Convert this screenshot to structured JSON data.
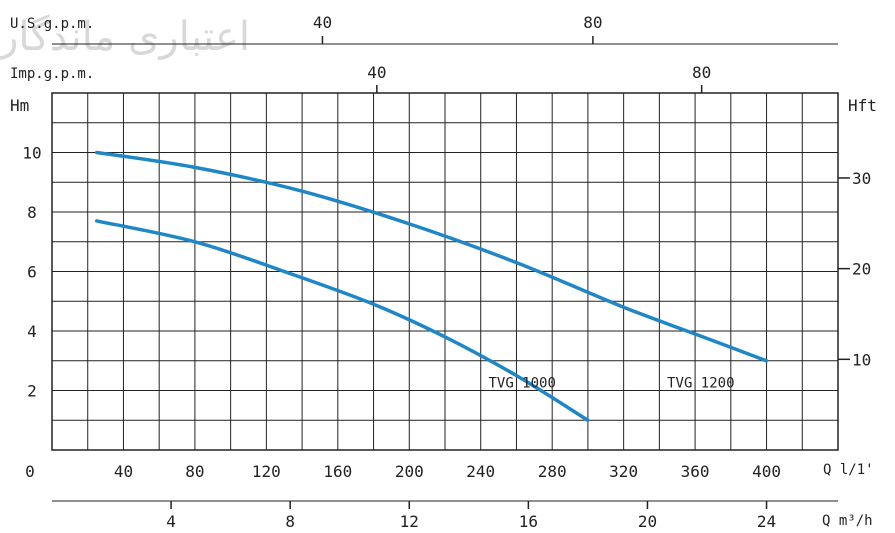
{
  "watermark": "اعتباری ماندگار",
  "chart_data": {
    "type": "line",
    "title": "",
    "left_axis_label": "Hm",
    "right_axis_label": "Hft",
    "top_axis_1_label": "U.S.g.p.m.",
    "top_axis_2_label": "Imp.g.p.m.",
    "bottom_axis_1_label": "Q l/1'",
    "bottom_axis_2_label": "Q m³/h",
    "origin_label": "0",
    "xlim_l_per_min": [
      0,
      440
    ],
    "ylim_m": [
      0,
      12
    ],
    "grid": true,
    "x_ticks_l_per_min": [
      "40",
      "80",
      "120",
      "160",
      "200",
      "240",
      "280",
      "320",
      "360",
      "400"
    ],
    "x_ticks_m3h": [
      "4",
      "8",
      "12",
      "16",
      "20",
      "24"
    ],
    "y_ticks_m": [
      "2",
      "4",
      "6",
      "8",
      "10"
    ],
    "y_ticks_ft": [
      "10",
      "20",
      "30"
    ],
    "top_ticks_usgpm": [
      "40",
      "80"
    ],
    "top_ticks_impgpm": [
      "40",
      "80"
    ],
    "curve_color": "#1f86c8",
    "series": [
      {
        "name": "TVG 1000",
        "x": [
          25,
          80,
          130,
          180,
          220,
          260,
          300
        ],
        "y": [
          7.7,
          7.0,
          6.0,
          4.9,
          3.8,
          2.5,
          1.0
        ]
      },
      {
        "name": "TVG 1200",
        "x": [
          25,
          80,
          140,
          200,
          260,
          320,
          360,
          400
        ],
        "y": [
          10.0,
          9.5,
          8.7,
          7.6,
          6.3,
          4.8,
          3.9,
          3.0
        ]
      }
    ]
  }
}
